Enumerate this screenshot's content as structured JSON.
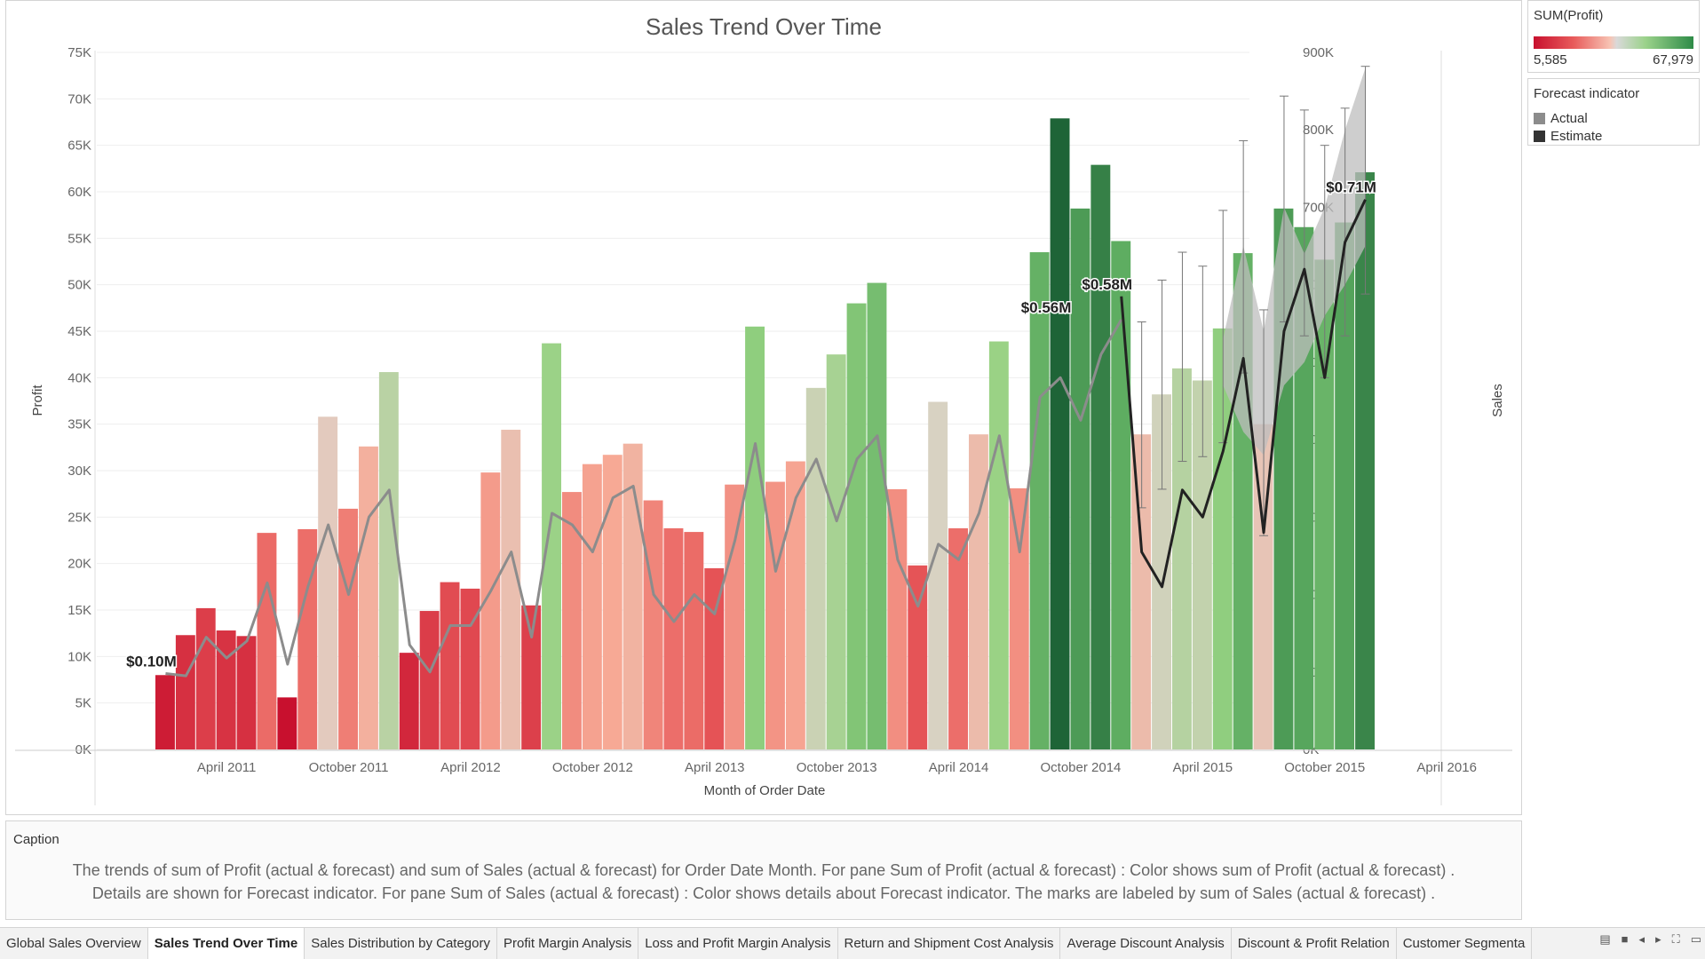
{
  "legend": {
    "profit_title": "SUM(Profit)",
    "profit_min": "5,585",
    "profit_max": "67,979",
    "forecast_title": "Forecast indicator",
    "forecast_items": [
      {
        "label": "Actual",
        "color": "#8c8c8c"
      },
      {
        "label": "Estimate",
        "color": "#333333"
      }
    ]
  },
  "caption": {
    "title": "Caption",
    "line1": "The trends of sum of Profit (actual & forecast)  and sum of Sales (actual & forecast)  for Order Date Month.  For pane Sum of Profit (actual & forecast) :  Color shows sum of Profit (actual & forecast) .",
    "line2": "Details are shown for Forecast indicator.  For pane Sum of Sales (actual & forecast) :  Color shows details about Forecast indicator.  The marks are labeled by sum of Sales (actual & forecast) ."
  },
  "tabs": [
    {
      "label": "Global Sales Overview",
      "active": false
    },
    {
      "label": "Sales Trend Over Time",
      "active": true
    },
    {
      "label": "Sales Distribution by Category",
      "active": false
    },
    {
      "label": "Profit Margin Analysis",
      "active": false
    },
    {
      "label": "Loss and Profit Margin Analysis",
      "active": false
    },
    {
      "label": "Return and Shipment Cost Analysis",
      "active": false
    },
    {
      "label": "Average Discount Analysis",
      "active": false
    },
    {
      "label": "Discount & Profit Relation",
      "active": false
    },
    {
      "label": "Customer Segmenta",
      "active": false
    }
  ],
  "tab_controls": [
    "▤",
    "■",
    "◂",
    "▸",
    "⛶",
    "▭"
  ],
  "chart_data": {
    "type": "bar",
    "title": "Sales Trend Over Time",
    "xlabel": "Month of Order Date",
    "ylabel": "Profit",
    "y2label": "Sales",
    "ylim": [
      0,
      75000
    ],
    "y2lim": [
      0,
      900000
    ],
    "yticks": [
      "0K",
      "5K",
      "10K",
      "15K",
      "20K",
      "25K",
      "30K",
      "35K",
      "40K",
      "45K",
      "50K",
      "55K",
      "60K",
      "65K",
      "70K",
      "75K"
    ],
    "y2ticks": [
      "0K",
      "100K",
      "200K",
      "300K",
      "400K",
      "500K",
      "600K",
      "700K",
      "800K",
      "900K"
    ],
    "xtick_labels": [
      {
        "label": "April 2011",
        "month_index": 3
      },
      {
        "label": "October 2011",
        "month_index": 9
      },
      {
        "label": "April 2012",
        "month_index": 15
      },
      {
        "label": "October 2012",
        "month_index": 21
      },
      {
        "label": "April 2013",
        "month_index": 27
      },
      {
        "label": "October 2013",
        "month_index": 33
      },
      {
        "label": "April 2014",
        "month_index": 39
      },
      {
        "label": "October 2014",
        "month_index": 45
      },
      {
        "label": "April 2015",
        "month_index": 51
      },
      {
        "label": "October 2015",
        "month_index": 57
      },
      {
        "label": "April 2016",
        "month_index": 63
      }
    ],
    "months_start": "January 2011",
    "profit_color_scale": {
      "min": 5585,
      "max": 67979
    },
    "profit": [
      8000,
      12300,
      15200,
      12800,
      12200,
      23300,
      5600,
      23700,
      35800,
      25900,
      32600,
      40600,
      10400,
      14900,
      18000,
      17300,
      29800,
      34400,
      15500,
      43700,
      27700,
      30700,
      31700,
      32900,
      26800,
      23800,
      23400,
      19500,
      28500,
      45500,
      28800,
      31000,
      38900,
      42500,
      48000,
      50200,
      28000,
      19800,
      37400,
      23800,
      33900,
      43900,
      28100,
      53500,
      67900,
      58200,
      62900,
      54700,
      33900,
      38200,
      41000,
      39700,
      45300,
      53400,
      35000,
      58200,
      56200,
      52700,
      56700,
      62100
    ],
    "profit_forecast_error_bars": [
      {
        "month_index": 48,
        "low": 26000,
        "high": 46000
      },
      {
        "month_index": 49,
        "low": 28000,
        "high": 50500
      },
      {
        "month_index": 50,
        "low": 31000,
        "high": 53500
      },
      {
        "month_index": 51,
        "low": 31500,
        "high": 52000
      },
      {
        "month_index": 52,
        "low": 33000,
        "high": 58000
      },
      {
        "month_index": 53,
        "low": 40500,
        "high": 65500
      },
      {
        "month_index": 54,
        "low": 23000,
        "high": 47300
      },
      {
        "month_index": 55,
        "low": 46000,
        "high": 70300
      },
      {
        "month_index": 56,
        "low": 44500,
        "high": 68800
      },
      {
        "month_index": 57,
        "low": 40000,
        "high": 65000
      },
      {
        "month_index": 58,
        "low": 44500,
        "high": 69000
      },
      {
        "month_index": 59,
        "low": 49000,
        "high": 73500
      }
    ],
    "sales_series": [
      {
        "name": "Actual",
        "start_month_index": 0,
        "values": [
          98000,
          95000,
          145000,
          118000,
          140000,
          215000,
          110000,
          210000,
          290000,
          200000,
          300000,
          335000,
          135000,
          100000,
          160000,
          160000,
          205000,
          255000,
          145000,
          305000,
          290000,
          255000,
          325000,
          340000,
          200000,
          165000,
          200000,
          175000,
          270000,
          395000,
          230000,
          325000,
          375000,
          295000,
          375000,
          405000,
          245000,
          185000,
          265000,
          245000,
          305000,
          405000,
          255000,
          455000,
          480000,
          425000,
          510000,
          555000
        ]
      },
      {
        "name": "Estimate",
        "start_month_index": 47,
        "values": [
          585000,
          255000,
          210000,
          335000,
          300000,
          385000,
          505000,
          280000,
          540000,
          620000,
          480000,
          655000,
          710000
        ]
      }
    ],
    "sales_band": {
      "start_month_index": 52,
      "low": [
        470000,
        410000,
        380000,
        470000,
        500000,
        560000,
        600000,
        650000
      ],
      "high": [
        530000,
        650000,
        540000,
        700000,
        640000,
        700000,
        800000,
        880000
      ]
    },
    "sales_labels": [
      {
        "text": "$0.10M",
        "month_index": 0,
        "value": 98000
      },
      {
        "text": "$0.56M",
        "month_index": 44,
        "value": 555000
      },
      {
        "text": "$0.58M",
        "month_index": 47,
        "value": 585000
      },
      {
        "text": "$0.71M",
        "month_index": 59,
        "value": 710000
      }
    ]
  }
}
